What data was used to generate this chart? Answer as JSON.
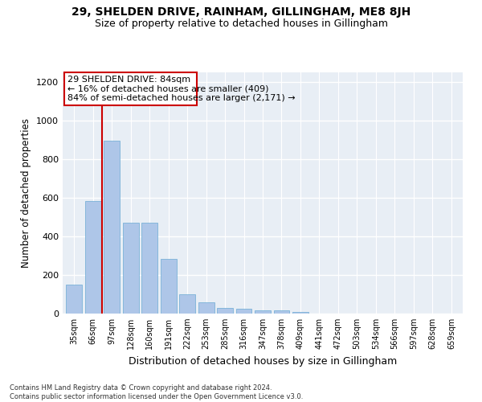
{
  "title": "29, SHELDEN DRIVE, RAINHAM, GILLINGHAM, ME8 8JH",
  "subtitle": "Size of property relative to detached houses in Gillingham",
  "xlabel": "Distribution of detached houses by size in Gillingham",
  "ylabel": "Number of detached properties",
  "categories": [
    "35sqm",
    "66sqm",
    "97sqm",
    "128sqm",
    "160sqm",
    "191sqm",
    "222sqm",
    "253sqm",
    "285sqm",
    "316sqm",
    "347sqm",
    "378sqm",
    "409sqm",
    "441sqm",
    "472sqm",
    "503sqm",
    "534sqm",
    "566sqm",
    "597sqm",
    "628sqm",
    "659sqm"
  ],
  "values": [
    150,
    585,
    895,
    470,
    470,
    285,
    100,
    60,
    30,
    25,
    15,
    15,
    10,
    0,
    0,
    0,
    0,
    0,
    0,
    0,
    0
  ],
  "bar_color": "#aec6e8",
  "bar_edge_color": "#6aaad4",
  "vline_x": 1.5,
  "vline_color": "#cc0000",
  "annotation_line1": "29 SHELDEN DRIVE: 84sqm",
  "annotation_line2": "← 16% of detached houses are smaller (409)",
  "annotation_line3": "84% of semi-detached houses are larger (2,171) →",
  "annotation_box_color": "#cc0000",
  "ylim": [
    0,
    1250
  ],
  "yticks": [
    0,
    200,
    400,
    600,
    800,
    1000,
    1200
  ],
  "background_color": "#e8eef5",
  "grid_color": "#ffffff",
  "footer": "Contains HM Land Registry data © Crown copyright and database right 2024.\nContains public sector information licensed under the Open Government Licence v3.0.",
  "title_fontsize": 10,
  "subtitle_fontsize": 9,
  "ylabel_fontsize": 8.5,
  "xlabel_fontsize": 9,
  "annotation_fontsize": 8,
  "footer_fontsize": 6
}
